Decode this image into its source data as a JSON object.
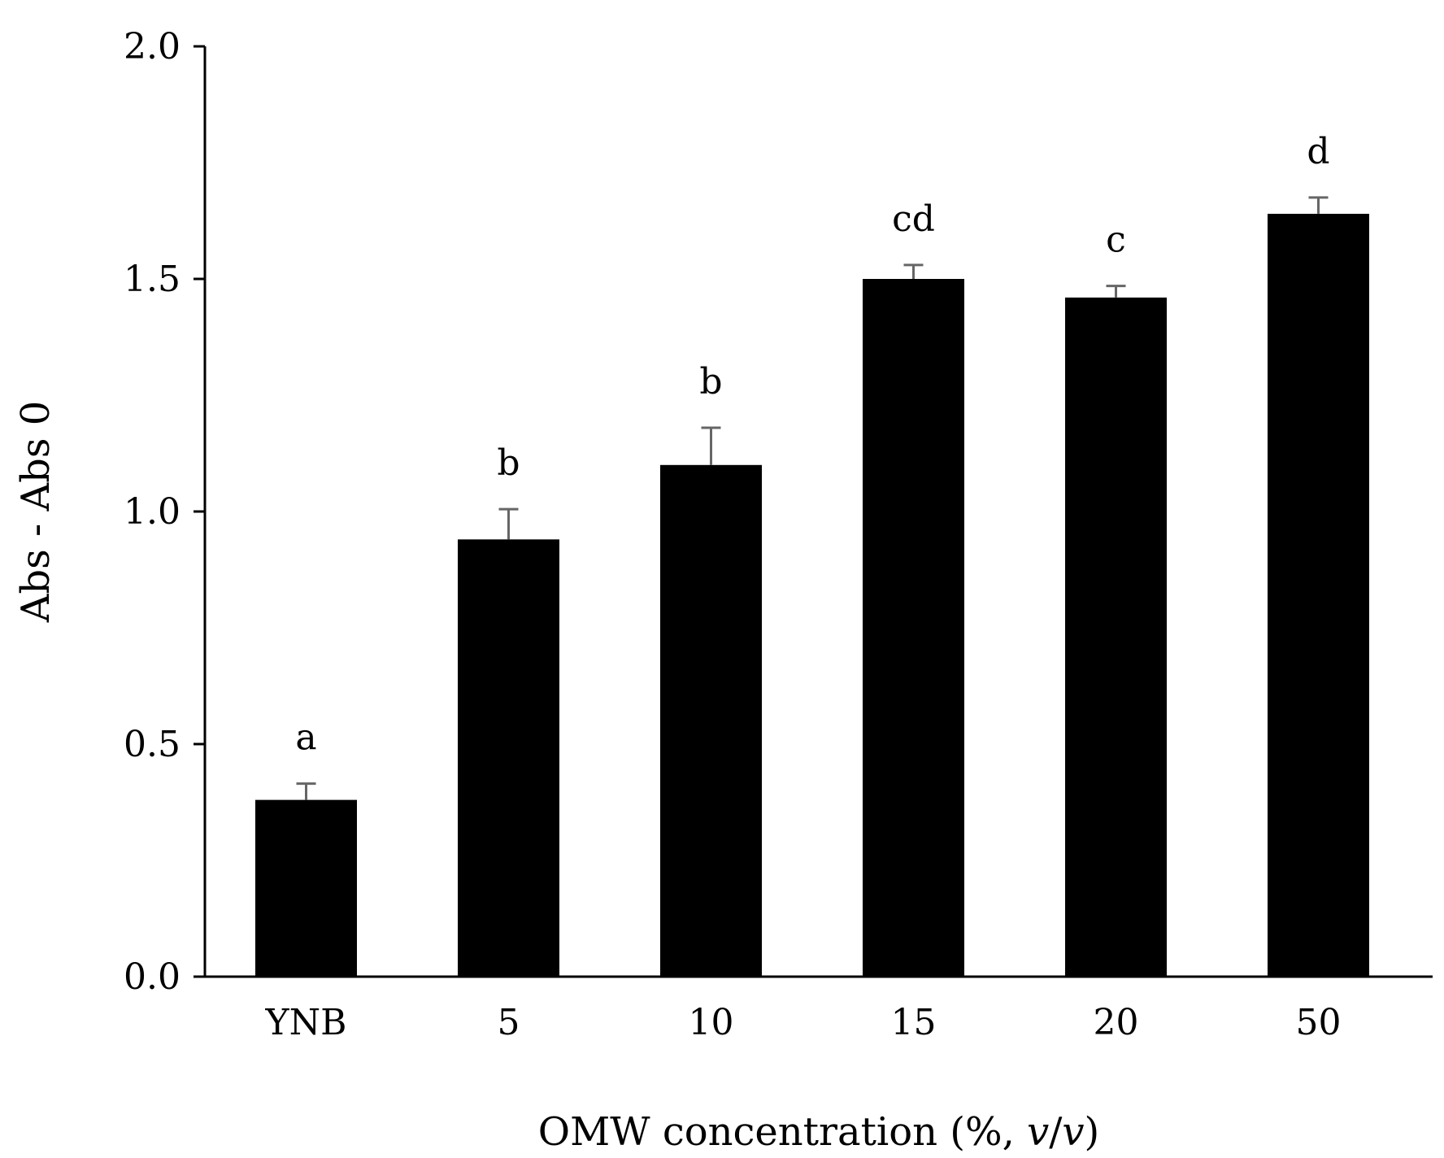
{
  "chart_data": {
    "type": "bar",
    "title": "",
    "xlabel_prefix": "OMW concentration (%, ",
    "xlabel_italic_1": "v",
    "xlabel_slash": "/",
    "xlabel_italic_2": "v",
    "xlabel_suffix": ")",
    "ylabel": "Abs - Abs 0",
    "ylim": [
      0,
      2.0
    ],
    "yticks": [
      "0.0",
      "0.5",
      "1.0",
      "1.5",
      "2.0"
    ],
    "ytick_values": [
      0,
      0.5,
      1.0,
      1.5,
      2.0
    ],
    "categories": [
      "YNB",
      "5",
      "10",
      "15",
      "20",
      "50"
    ],
    "values": [
      0.38,
      0.94,
      1.1,
      1.5,
      1.46,
      1.64
    ],
    "errors": [
      0.035,
      0.065,
      0.08,
      0.03,
      0.025,
      0.035
    ],
    "significance": [
      "a",
      "b",
      "b",
      "cd",
      "c",
      "d"
    ],
    "bar_color": "#000000",
    "error_color": "#666666",
    "axis_color": "#000000"
  }
}
